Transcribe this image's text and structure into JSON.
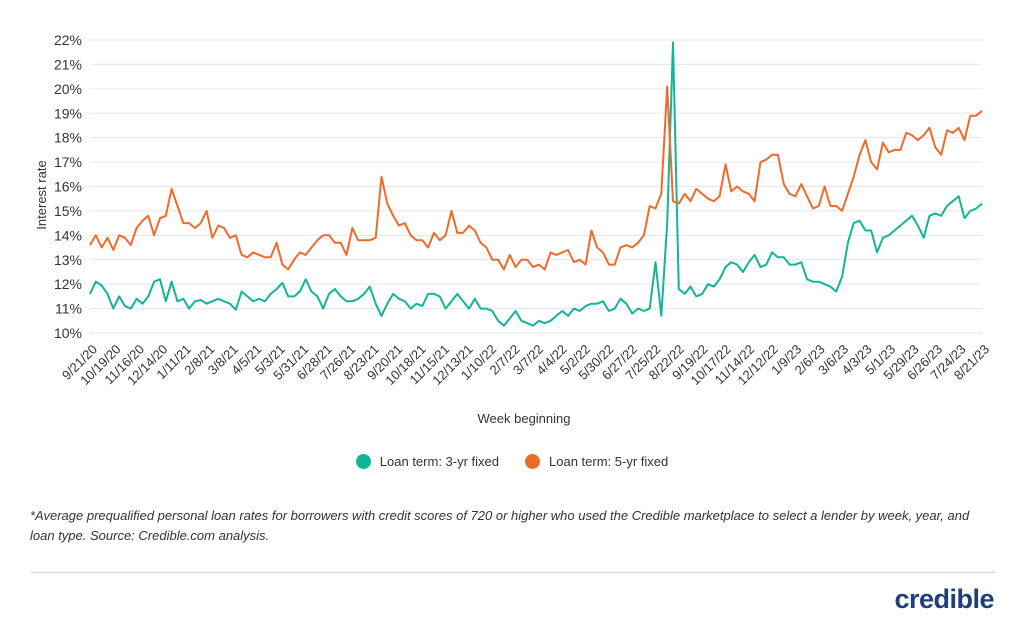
{
  "chart_data": {
    "type": "line",
    "xlabel": "Week beginning",
    "ylabel": "Interest rate",
    "ylim": [
      10,
      22
    ],
    "yticks": [
      "10%",
      "11%",
      "12%",
      "13%",
      "14%",
      "15%",
      "16%",
      "17%",
      "18%",
      "19%",
      "20%",
      "21%",
      "22%"
    ],
    "grid": true,
    "legend_position": "bottom-center",
    "x_tick_labels": [
      "9/21/20",
      "10/19/20",
      "11/16/20",
      "12/14/20",
      "1/11/21",
      "2/8/21",
      "3/8/21",
      "4/5/21",
      "5/3/21",
      "5/31/21",
      "6/28/21",
      "7/26/21",
      "8/23/21",
      "9/20/21",
      "10/18/21",
      "11/15/21",
      "12/13/21",
      "1/10/22",
      "2/7/22",
      "3/7/22",
      "4/4/22",
      "5/2/22",
      "5/30/22",
      "6/27/22",
      "7/25/22",
      "8/22/22",
      "9/19/22",
      "10/17/22",
      "11/14/22",
      "12/12/22",
      "1/9/23",
      "2/6/23",
      "3/6/23",
      "4/3/23",
      "5/1/23",
      "5/29/23",
      "6/26/23",
      "7/24/23",
      "8/21/23"
    ],
    "series": [
      {
        "name": "Loan term: 3-yr fixed",
        "color": "#13b497",
        "values": [
          11.6,
          12.1,
          11.95,
          11.6,
          11.0,
          11.5,
          11.1,
          11.0,
          11.4,
          11.2,
          11.5,
          12.1,
          12.2,
          11.3,
          12.1,
          11.3,
          11.4,
          11.0,
          11.3,
          11.35,
          11.2,
          11.3,
          11.4,
          11.3,
          11.2,
          10.95,
          11.7,
          11.5,
          11.3,
          11.4,
          11.3,
          11.6,
          11.8,
          12.05,
          11.5,
          11.5,
          11.7,
          12.2,
          11.7,
          11.5,
          11.0,
          11.6,
          11.8,
          11.5,
          11.3,
          11.3,
          11.4,
          11.6,
          11.9,
          11.2,
          10.7,
          11.2,
          11.6,
          11.4,
          11.3,
          11.0,
          11.2,
          11.1,
          11.6,
          11.6,
          11.5,
          11.0,
          11.3,
          11.6,
          11.3,
          11.0,
          11.4,
          11.0,
          11.0,
          10.9,
          10.5,
          10.3,
          10.6,
          10.9,
          10.5,
          10.4,
          10.3,
          10.5,
          10.4,
          10.5,
          10.7,
          10.9,
          10.7,
          11.0,
          10.9,
          11.1,
          11.2,
          11.2,
          11.3,
          10.9,
          11.0,
          11.4,
          11.2,
          10.8,
          11.0,
          10.9,
          11.0,
          12.9,
          10.7,
          14.5,
          21.9,
          11.8,
          11.6,
          11.9,
          11.5,
          11.6,
          12.0,
          11.9,
          12.2,
          12.7,
          12.9,
          12.8,
          12.5,
          12.9,
          13.2,
          12.7,
          12.8,
          13.3,
          13.1,
          13.1,
          12.8,
          12.8,
          12.9,
          12.2,
          12.1,
          12.1,
          12.0,
          11.9,
          11.7,
          12.3,
          13.7,
          14.5,
          14.6,
          14.2,
          14.2,
          13.3,
          13.9,
          14.0,
          14.2,
          14.4,
          14.6,
          14.8,
          14.4,
          13.9,
          14.8,
          14.9,
          14.8,
          15.2,
          15.4,
          15.6,
          14.7,
          15.0,
          15.1,
          15.3
        ]
      },
      {
        "name": "Loan term: 5-yr fixed",
        "color": "#ef6b2c",
        "values": [
          13.6,
          14.0,
          13.5,
          13.9,
          13.4,
          14.0,
          13.9,
          13.6,
          14.3,
          14.6,
          14.8,
          14.0,
          14.7,
          14.8,
          15.9,
          15.2,
          14.5,
          14.5,
          14.3,
          14.5,
          15.0,
          13.9,
          14.4,
          14.3,
          13.9,
          14.0,
          13.2,
          13.1,
          13.3,
          13.2,
          13.1,
          13.1,
          13.7,
          12.8,
          12.6,
          13.0,
          13.3,
          13.2,
          13.5,
          13.8,
          14.0,
          14.0,
          13.7,
          13.7,
          13.2,
          14.3,
          13.8,
          13.8,
          13.8,
          13.9,
          16.4,
          15.3,
          14.8,
          14.4,
          14.5,
          14.0,
          13.8,
          13.8,
          13.5,
          14.1,
          13.8,
          14.0,
          15.0,
          14.1,
          14.1,
          14.4,
          14.2,
          13.7,
          13.5,
          13.0,
          13.0,
          12.6,
          13.2,
          12.7,
          13.0,
          13.0,
          12.7,
          12.8,
          12.6,
          13.3,
          13.2,
          13.3,
          13.4,
          12.9,
          13.0,
          12.8,
          14.2,
          13.5,
          13.3,
          12.8,
          12.8,
          13.5,
          13.6,
          13.5,
          13.7,
          14.0,
          15.2,
          15.1,
          15.7,
          20.1,
          15.4,
          15.3,
          15.7,
          15.4,
          15.9,
          15.7,
          15.5,
          15.4,
          15.6,
          16.9,
          15.8,
          16.0,
          15.8,
          15.7,
          15.4,
          17.0,
          17.1,
          17.3,
          17.3,
          16.1,
          15.7,
          15.6,
          16.1,
          15.6,
          15.1,
          15.2,
          16.0,
          15.2,
          15.2,
          15.0,
          15.7,
          16.4,
          17.3,
          17.9,
          17.0,
          16.7,
          17.8,
          17.4,
          17.5,
          17.5,
          18.2,
          18.1,
          17.9,
          18.1,
          18.4,
          17.6,
          17.3,
          18.3,
          18.2,
          18.4,
          17.9,
          18.9,
          18.9,
          19.1
        ]
      }
    ]
  },
  "footnote": "*Average prequalified personal loan rates for borrowers with credit scores of 720 or higher who used the Credible marketplace to select a lender by week, year, and loan type. Source: Credible.com analysis.",
  "logo_text": "credible"
}
